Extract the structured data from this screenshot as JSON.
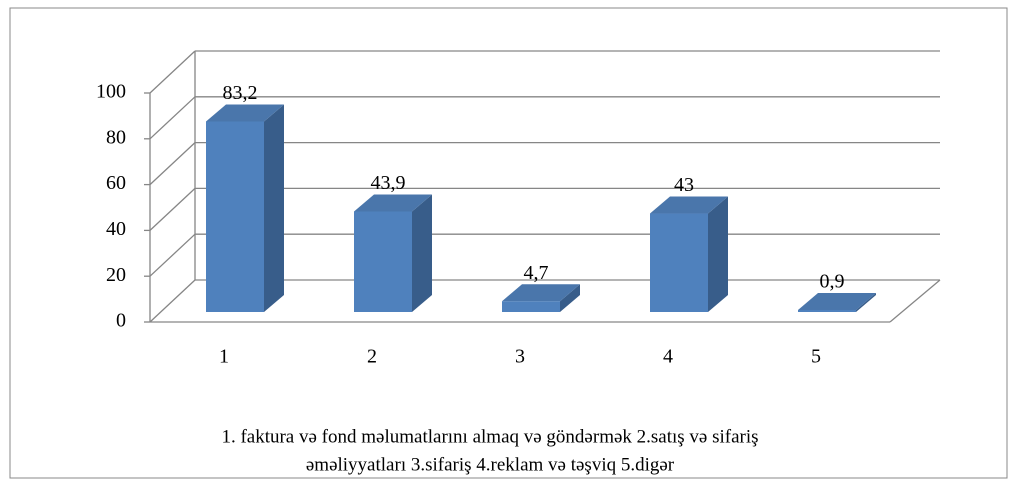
{
  "chart_data": {
    "type": "bar3d",
    "categories": [
      "1",
      "2",
      "3",
      "4",
      "5"
    ],
    "values": [
      83.2,
      43.9,
      4.7,
      43,
      0.9
    ],
    "value_labels": [
      "83,2",
      "43,9",
      "4,7",
      "43",
      "0,9"
    ],
    "color": "#4f81bd",
    "ylim": [
      0,
      100
    ],
    "yticks": [
      0,
      20,
      40,
      60,
      80,
      100
    ],
    "grid": true,
    "caption": [
      "1. faktura və fond məlumatlarını almaq  və göndərmək   2.satış və sifariş",
      "əməliyyatları  3.sifariş 4.reklam və təşviq 5.digər"
    ]
  }
}
